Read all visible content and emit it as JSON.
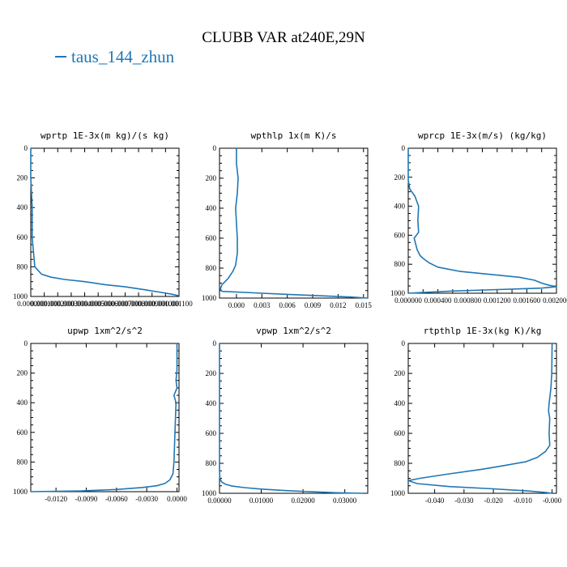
{
  "figure": {
    "title": "CLUBB VAR at240E,29N",
    "legend": "taus_144_zhun",
    "line_color": "#1f77b4"
  },
  "chart_data": [
    {
      "type": "line",
      "title": "wprtp  1E-3x(m kg)/(s kg)",
      "xlim": [
        0,
        0.0011
      ],
      "ylim": [
        1000,
        0
      ],
      "yticks": [
        0,
        200,
        400,
        600,
        800,
        1000
      ],
      "xticks": [
        0,
        0.0001,
        0.0002,
        0.0003,
        0.0004,
        0.0005,
        0.0006,
        0.0007,
        0.0008,
        0.0009,
        0.001,
        0.0011
      ],
      "xtick_labels": [
        "0.000000",
        "0.000100",
        "0.000200",
        "0.000300",
        "0.000400",
        "0.000500",
        "0.000600",
        "0.000700",
        "0.000800",
        "0.000900",
        "0.001000",
        "0.001100"
      ],
      "series": [
        {
          "x": [
            0.0,
            0.0,
            1e-05,
            1e-05,
            2e-05,
            3e-05,
            8e-05,
            0.00015,
            0.00025,
            0.0004,
            0.00055,
            0.0007,
            0.00085,
            0.00095,
            0.00105,
            0.0011
          ],
          "y": [
            0,
            200,
            400,
            600,
            700,
            800,
            850,
            870,
            885,
            900,
            920,
            935,
            955,
            970,
            985,
            995
          ]
        }
      ]
    },
    {
      "type": "line",
      "title": "wpthlp  1x(m K)/s",
      "xlim": [
        -0.002,
        0.0155
      ],
      "ylim": [
        1000,
        0
      ],
      "yticks": [
        0,
        200,
        400,
        600,
        800,
        1000
      ],
      "xticks": [
        0,
        0.003,
        0.006,
        0.009,
        0.012,
        0.015
      ],
      "xtick_labels": [
        "0.000",
        "0.003",
        "0.006",
        "0.009",
        "0.012",
        "0.015"
      ],
      "series": [
        {
          "x": [
            0.0,
            0.0,
            0.0002,
            0.0001,
            -0.0001,
            0.0,
            0.0001,
            0.0001,
            -0.0001,
            -0.0004,
            -0.001,
            -0.0017,
            -0.0019,
            -0.0017,
            0.002,
            0.006,
            0.01,
            0.0135,
            0.0155
          ],
          "y": [
            0,
            100,
            200,
            300,
            400,
            500,
            600,
            700,
            780,
            820,
            870,
            910,
            940,
            955,
            965,
            975,
            985,
            993,
            1000
          ]
        }
      ]
    },
    {
      "type": "line",
      "title": "wprcp  1E-3x(m/s) (kg/kg)",
      "xlim": [
        0,
        0.002
      ],
      "ylim": [
        1000,
        0
      ],
      "yticks": [
        0,
        200,
        400,
        600,
        800,
        1000
      ],
      "xticks": [
        0,
        0.0002,
        0.0004,
        0.0006,
        0.0008,
        0.001,
        0.0012,
        0.0014,
        0.0016,
        0.0018,
        0.002
      ],
      "xtick_labels": [
        "0.000000",
        "",
        "0.000400",
        "",
        "0.000800",
        "",
        "0.001200",
        "",
        "0.001600",
        "",
        "0.002000"
      ],
      "series": [
        {
          "x": [
            0.0,
            0.0,
            0.0,
            2e-05,
            9e-05,
            0.00014,
            0.00013,
            0.00014,
            8e-05,
            0.00012,
            0.00016,
            0.0002,
            0.00028,
            0.0004,
            0.0007,
            0.0011,
            0.0015,
            0.0017,
            0.0018,
            0.0019,
            0.002,
            0.0018,
            0.0012,
            0.0006,
            0.0002,
            0.0
          ],
          "y": [
            0,
            100,
            220,
            280,
            330,
            400,
            500,
            580,
            620,
            700,
            740,
            760,
            790,
            820,
            850,
            870,
            890,
            910,
            930,
            945,
            955,
            965,
            975,
            985,
            995,
            1000
          ]
        }
      ]
    },
    {
      "type": "line",
      "title": "upwp  1xm^2/s^2",
      "xlim": [
        -0.0145,
        0.0002
      ],
      "ylim": [
        1000,
        0
      ],
      "yticks": [
        0,
        200,
        400,
        600,
        800,
        1000
      ],
      "xticks": [
        -0.012,
        -0.009,
        -0.006,
        -0.003,
        0
      ],
      "xtick_labels": [
        "-0.0120",
        "-0.0090",
        "-0.0060",
        "-0.0030",
        "0.0000"
      ],
      "series": [
        {
          "x": [
            0.0,
            0.0,
            -0.0001,
            0.0,
            -0.0003,
            -0.0001,
            -0.0002,
            -0.0003,
            -0.0004,
            -0.0007,
            -0.0012,
            -0.002,
            -0.0035,
            -0.006,
            -0.0095,
            -0.0145
          ],
          "y": [
            0,
            180,
            250,
            300,
            350,
            400,
            600,
            800,
            880,
            920,
            945,
            960,
            972,
            985,
            995,
            1000
          ]
        }
      ]
    },
    {
      "type": "line",
      "title": "vpwp  1xm^2/s^2",
      "xlim": [
        0,
        0.0355
      ],
      "ylim": [
        1000,
        0
      ],
      "yticks": [
        0,
        200,
        400,
        600,
        800,
        1000
      ],
      "xticks": [
        0,
        0.01,
        0.02,
        0.03
      ],
      "xtick_labels": [
        "0.00000",
        "0.01000",
        "0.02000",
        "0.03000"
      ],
      "series": [
        {
          "x": [
            0.0,
            0.0,
            0.0,
            0.0001,
            0.0005,
            0.0015,
            0.003,
            0.006,
            0.01,
            0.016,
            0.022,
            0.028,
            0.0345
          ],
          "y": [
            0,
            500,
            850,
            900,
            925,
            940,
            952,
            962,
            972,
            982,
            990,
            996,
            1000
          ]
        }
      ]
    },
    {
      "type": "line",
      "title": "rtpthlp  1E-3x(kg K)/kg",
      "xlim": [
        -0.049,
        0.0015
      ],
      "ylim": [
        1000,
        0
      ],
      "yticks": [
        0,
        200,
        400,
        600,
        800,
        1000
      ],
      "xticks": [
        -0.04,
        -0.03,
        -0.02,
        -0.01,
        0
      ],
      "xtick_labels": [
        "-0.040",
        "-0.030",
        "-0.020",
        "-0.010",
        "-0.000"
      ],
      "series": [
        {
          "x": [
            0.0,
            -0.0001,
            -0.0004,
            -0.001,
            -0.0012,
            -0.0008,
            -0.001,
            -0.0008,
            -0.0022,
            -0.005,
            -0.009,
            -0.015,
            -0.024,
            -0.035,
            -0.045,
            -0.049,
            -0.046,
            -0.035,
            -0.02,
            -0.008,
            -0.002,
            0.0
          ],
          "y": [
            0,
            200,
            300,
            400,
            450,
            500,
            600,
            680,
            720,
            760,
            790,
            810,
            840,
            870,
            900,
            915,
            935,
            955,
            970,
            985,
            995,
            1000
          ]
        }
      ]
    }
  ]
}
